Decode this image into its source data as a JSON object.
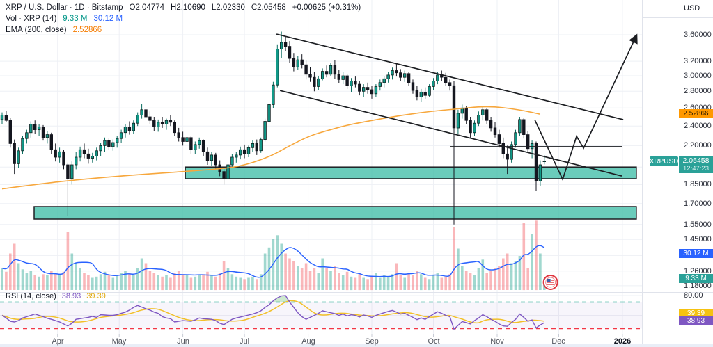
{
  "header": {
    "title": "XRP / U.S. Dollar · 1D · Bitstamp",
    "o": "O2.04774",
    "h": "H2.10690",
    "l": "L2.02330",
    "c": "C2.05458",
    "change": "+0.00625 (+0.31%)"
  },
  "legend": {
    "vol_title": "Vol · XRP (14)",
    "vol_value": "9.33 M",
    "vol_ma": "30.12 M",
    "ema_title": "EMA (200, close)",
    "ema_value": "2.52866"
  },
  "rsi_legend": {
    "title": "RSI (14, close)",
    "value": "38.93",
    "ma": "39.39"
  },
  "price_axis": {
    "currency": "USD",
    "ema_label": "2.52866",
    "symbol_badge": "XRPUSD",
    "last_price": "2.05458",
    "countdown": "12:47:23",
    "vol_ma_label": "30.12 M",
    "vol_label": "9.33 M",
    "rsi_ma_label": "39.39",
    "rsi_label": "38.93",
    "rsi_tick": "80.00"
  },
  "colors": {
    "up": "#119988",
    "up_border": "#10201e",
    "up_wick": "#0b6d60",
    "down": "#14161f",
    "down_border": "#14161f",
    "ema": "#f7a73c",
    "price_line": "#26a69a",
    "vol_up": "rgba(8,153,129,0.38)",
    "vol_down": "rgba(242,84,91,0.42)",
    "vol_ma": "#2962ff",
    "rsi": "#7e57c2",
    "rsi_ma": "#f2c029",
    "overbought": "#22ab94",
    "oversold": "#f23645",
    "zone_fill": "rgba(69,191,170,0.8)",
    "zone_border": "#1d1f23",
    "drawing": "#1c1e22",
    "grid": "#eef0f5",
    "badge_price": "#2aa198",
    "badge_ema": "#ff9800",
    "badge_volma": "#2962ff",
    "badge_vol": "#2aa198",
    "badge_rsi": "#7e57c2",
    "badge_rsima": "#f5c211"
  },
  "chart_data": {
    "type": "candlestick",
    "symbol": "XRPUSD",
    "exchange": "Bitstamp",
    "interval": "1D",
    "scale": "log",
    "bar_interval_days": 2,
    "price_ticks": [
      {
        "label": "3.60000",
        "p": 3.6
      },
      {
        "label": "3.20000",
        "p": 3.2
      },
      {
        "label": "3.00000",
        "p": 3.0
      },
      {
        "label": "2.80000",
        "p": 2.8
      },
      {
        "label": "2.60000",
        "p": 2.6
      },
      {
        "label": "2.40000",
        "p": 2.4
      },
      {
        "label": "2.20000",
        "p": 2.2
      },
      {
        "label": "1.85000",
        "p": 1.85
      },
      {
        "label": "1.70000",
        "p": 1.7
      },
      {
        "label": "1.55000",
        "p": 1.55
      },
      {
        "label": "1.45000",
        "p": 1.45
      },
      {
        "label": "1.35000",
        "p": 1.35
      },
      {
        "label": "1.26000",
        "p": 1.26
      },
      {
        "label": "1.18000",
        "p": 1.18
      }
    ],
    "grid_only_prices": [
      2.0
    ],
    "months": [
      {
        "label": "Apr",
        "day": 27
      },
      {
        "label": "May",
        "day": 57
      },
      {
        "label": "Jun",
        "day": 88
      },
      {
        "label": "Jul",
        "day": 118
      },
      {
        "label": "Aug",
        "day": 149
      },
      {
        "label": "Sep",
        "day": 180
      },
      {
        "label": "Oct",
        "day": 210
      },
      {
        "label": "Nov",
        "day": 241
      },
      {
        "label": "Dec",
        "day": 271
      },
      {
        "label": "2026",
        "day": 302,
        "year": true
      }
    ],
    "candles": [
      [
        2.47,
        2.55,
        2.42,
        2.52
      ],
      [
        2.52,
        2.57,
        2.44,
        2.46
      ],
      [
        2.46,
        2.49,
        2.18,
        2.22
      ],
      [
        2.22,
        2.26,
        1.94,
        2.03
      ],
      [
        2.03,
        2.18,
        1.99,
        2.15
      ],
      [
        2.15,
        2.3,
        2.12,
        2.27
      ],
      [
        2.27,
        2.36,
        2.22,
        2.33
      ],
      [
        2.33,
        2.45,
        2.28,
        2.42
      ],
      [
        2.42,
        2.46,
        2.32,
        2.36
      ],
      [
        2.36,
        2.42,
        2.3,
        2.39
      ],
      [
        2.39,
        2.41,
        2.25,
        2.28
      ],
      [
        2.28,
        2.35,
        2.22,
        2.31
      ],
      [
        2.31,
        2.33,
        2.12,
        2.16
      ],
      [
        2.16,
        2.22,
        2.05,
        2.09
      ],
      [
        2.09,
        2.18,
        2.04,
        2.14
      ],
      [
        2.14,
        2.16,
        1.98,
        2.02
      ],
      [
        2.02,
        2.04,
        1.61,
        1.9
      ],
      [
        1.9,
        2.05,
        1.85,
        2.02
      ],
      [
        2.02,
        2.14,
        1.98,
        2.09
      ],
      [
        2.09,
        2.19,
        2.05,
        2.16
      ],
      [
        2.16,
        2.22,
        2.08,
        2.12
      ],
      [
        2.12,
        2.17,
        2.03,
        2.08
      ],
      [
        2.08,
        2.13,
        2.04,
        2.1
      ],
      [
        2.1,
        2.18,
        2.06,
        2.15
      ],
      [
        2.15,
        2.23,
        2.1,
        2.2
      ],
      [
        2.2,
        2.28,
        2.14,
        2.25
      ],
      [
        2.25,
        2.27,
        2.16,
        2.19
      ],
      [
        2.19,
        2.26,
        2.15,
        2.23
      ],
      [
        2.23,
        2.3,
        2.18,
        2.27
      ],
      [
        2.27,
        2.36,
        2.23,
        2.33
      ],
      [
        2.33,
        2.42,
        2.28,
        2.39
      ],
      [
        2.39,
        2.45,
        2.31,
        2.35
      ],
      [
        2.35,
        2.46,
        2.32,
        2.43
      ],
      [
        2.43,
        2.55,
        2.4,
        2.52
      ],
      [
        2.52,
        2.65,
        2.48,
        2.58
      ],
      [
        2.58,
        2.62,
        2.46,
        2.5
      ],
      [
        2.5,
        2.56,
        2.42,
        2.46
      ],
      [
        2.46,
        2.5,
        2.35,
        2.39
      ],
      [
        2.39,
        2.47,
        2.34,
        2.44
      ],
      [
        2.44,
        2.5,
        2.38,
        2.42
      ],
      [
        2.42,
        2.48,
        2.36,
        2.46
      ],
      [
        2.46,
        2.52,
        2.4,
        2.44
      ],
      [
        2.44,
        2.46,
        2.3,
        2.33
      ],
      [
        2.33,
        2.38,
        2.24,
        2.28
      ],
      [
        2.28,
        2.34,
        2.2,
        2.24
      ],
      [
        2.24,
        2.31,
        2.18,
        2.28
      ],
      [
        2.28,
        2.3,
        2.12,
        2.16
      ],
      [
        2.16,
        2.24,
        2.12,
        2.21
      ],
      [
        2.21,
        2.28,
        2.17,
        2.25
      ],
      [
        2.25,
        2.26,
        2.1,
        2.14
      ],
      [
        2.14,
        2.18,
        2.02,
        2.06
      ],
      [
        2.06,
        2.14,
        2.01,
        2.11
      ],
      [
        2.11,
        2.13,
        1.98,
        2.02
      ],
      [
        2.02,
        2.06,
        1.92,
        1.96
      ],
      [
        1.96,
        2.0,
        1.85,
        1.9
      ],
      [
        1.9,
        2.05,
        1.88,
        2.02
      ],
      [
        2.02,
        2.12,
        1.99,
        2.09
      ],
      [
        2.09,
        2.14,
        2.04,
        2.11
      ],
      [
        2.11,
        2.19,
        2.07,
        2.16
      ],
      [
        2.16,
        2.21,
        2.08,
        2.12
      ],
      [
        2.12,
        2.2,
        2.09,
        2.18
      ],
      [
        2.18,
        2.25,
        2.14,
        2.22
      ],
      [
        2.22,
        2.26,
        2.11,
        2.15
      ],
      [
        2.15,
        2.28,
        2.13,
        2.26
      ],
      [
        2.26,
        2.48,
        2.24,
        2.45
      ],
      [
        2.45,
        2.68,
        2.43,
        2.64
      ],
      [
        2.64,
        2.92,
        2.6,
        2.88
      ],
      [
        2.88,
        3.45,
        2.85,
        3.38
      ],
      [
        3.38,
        3.65,
        3.25,
        3.48
      ],
      [
        3.48,
        3.58,
        3.35,
        3.42
      ],
      [
        3.42,
        3.5,
        3.18,
        3.24
      ],
      [
        3.24,
        3.32,
        3.06,
        3.12
      ],
      [
        3.12,
        3.28,
        3.08,
        3.22
      ],
      [
        3.22,
        3.3,
        3.1,
        3.15
      ],
      [
        3.15,
        3.21,
        2.95,
        3.02
      ],
      [
        3.02,
        3.12,
        2.92,
        2.98
      ],
      [
        2.98,
        3.05,
        2.8,
        2.86
      ],
      [
        2.86,
        3.0,
        2.82,
        2.96
      ],
      [
        2.96,
        3.1,
        2.94,
        3.06
      ],
      [
        3.06,
        3.14,
        2.98,
        3.02
      ],
      [
        3.02,
        3.18,
        3.0,
        3.14
      ],
      [
        3.14,
        3.22,
        2.96,
        3.02
      ],
      [
        3.02,
        3.08,
        2.9,
        2.95
      ],
      [
        2.95,
        3.05,
        2.89,
        3.0
      ],
      [
        3.0,
        3.02,
        2.83,
        2.87
      ],
      [
        2.87,
        2.97,
        2.79,
        2.93
      ],
      [
        2.93,
        2.99,
        2.85,
        2.89
      ],
      [
        2.89,
        2.93,
        2.75,
        2.8
      ],
      [
        2.8,
        2.89,
        2.73,
        2.85
      ],
      [
        2.85,
        2.91,
        2.77,
        2.82
      ],
      [
        2.82,
        2.87,
        2.71,
        2.77
      ],
      [
        2.77,
        2.89,
        2.73,
        2.86
      ],
      [
        2.86,
        2.95,
        2.81,
        2.91
      ],
      [
        2.91,
        2.99,
        2.85,
        2.96
      ],
      [
        2.96,
        3.05,
        2.91,
        3.01
      ],
      [
        3.01,
        3.11,
        2.95,
        3.07
      ],
      [
        3.07,
        3.17,
        2.99,
        3.04
      ],
      [
        3.04,
        3.09,
        2.93,
        2.98
      ],
      [
        2.98,
        3.07,
        2.92,
        3.03
      ],
      [
        3.03,
        3.05,
        2.87,
        2.91
      ],
      [
        2.91,
        2.95,
        2.77,
        2.81
      ],
      [
        2.81,
        2.87,
        2.69,
        2.73
      ],
      [
        2.73,
        2.83,
        2.67,
        2.79
      ],
      [
        2.79,
        2.85,
        2.71,
        2.75
      ],
      [
        2.75,
        2.89,
        2.73,
        2.86
      ],
      [
        2.86,
        2.97,
        2.82,
        2.93
      ],
      [
        2.93,
        3.05,
        2.89,
        3.01
      ],
      [
        3.01,
        3.07,
        2.93,
        2.98
      ],
      [
        2.98,
        3.04,
        2.87,
        2.91
      ],
      [
        2.91,
        2.95,
        2.81,
        2.87
      ],
      [
        2.87,
        2.93,
        1.55,
        2.38
      ],
      [
        2.38,
        2.58,
        2.32,
        2.54
      ],
      [
        2.54,
        2.64,
        2.48,
        2.6
      ],
      [
        2.6,
        2.62,
        2.42,
        2.46
      ],
      [
        2.46,
        2.5,
        2.28,
        2.33
      ],
      [
        2.33,
        2.46,
        2.3,
        2.43
      ],
      [
        2.43,
        2.56,
        2.4,
        2.52
      ],
      [
        2.52,
        2.62,
        2.46,
        2.58
      ],
      [
        2.58,
        2.6,
        2.42,
        2.46
      ],
      [
        2.46,
        2.5,
        2.34,
        2.38
      ],
      [
        2.38,
        2.44,
        2.28,
        2.31
      ],
      [
        2.31,
        2.36,
        2.18,
        2.22
      ],
      [
        2.22,
        2.28,
        2.08,
        2.12
      ],
      [
        2.12,
        2.2,
        1.94,
        2.07
      ],
      [
        2.07,
        2.24,
        2.04,
        2.21
      ],
      [
        2.21,
        2.36,
        2.18,
        2.33
      ],
      [
        2.33,
        2.5,
        2.3,
        2.47
      ],
      [
        2.47,
        2.49,
        2.27,
        2.31
      ],
      [
        2.31,
        2.35,
        2.13,
        2.17
      ],
      [
        2.17,
        2.25,
        2.08,
        2.22
      ],
      [
        2.22,
        2.24,
        1.8,
        1.88
      ],
      [
        1.88,
        2.06,
        1.84,
        2.02
      ],
      [
        2.04774,
        2.1069,
        2.0233,
        2.05458
      ]
    ],
    "volumes": [
      18,
      15,
      30,
      38,
      22,
      17,
      14,
      16,
      12,
      11,
      13,
      12,
      16,
      14,
      12,
      15,
      48,
      30,
      22,
      18,
      14,
      12,
      10,
      11,
      13,
      15,
      12,
      10,
      12,
      14,
      16,
      14,
      12,
      18,
      26,
      22,
      16,
      14,
      12,
      11,
      12,
      10,
      14,
      16,
      13,
      12,
      10,
      11,
      12,
      13,
      15,
      12,
      11,
      14,
      24,
      18,
      13,
      11,
      10,
      9,
      10,
      11,
      9,
      13,
      30,
      35,
      42,
      45,
      38,
      30,
      26,
      24,
      20,
      18,
      22,
      16,
      18,
      14,
      26,
      18,
      16,
      20,
      14,
      12,
      15,
      11,
      10,
      13,
      10,
      9,
      11,
      14,
      10,
      12,
      11,
      13,
      22,
      12,
      10,
      14,
      12,
      16,
      13,
      10,
      9,
      12,
      14,
      10,
      11,
      13,
      52,
      34,
      20,
      16,
      14,
      12,
      18,
      25,
      14,
      16,
      18,
      20,
      26,
      30,
      22,
      24,
      28,
      55,
      18,
      46,
      57,
      30,
      9.33
    ],
    "rsi_series": [
      50,
      46,
      41,
      40,
      42,
      46,
      48,
      50,
      52,
      50,
      48,
      45.5,
      44,
      42,
      40,
      37,
      34,
      38,
      44,
      45,
      46,
      47,
      48.5,
      47,
      51,
      50.5,
      50,
      50,
      51,
      53,
      55,
      58,
      62,
      65,
      62.5,
      60,
      58,
      55,
      53,
      48,
      46,
      45,
      40,
      41,
      42,
      41.5,
      41,
      43,
      46,
      45,
      44.5,
      44,
      42,
      38,
      36,
      40,
      44,
      46,
      47.5,
      49,
      50.5,
      52,
      54,
      57,
      62,
      66,
      72,
      76.5,
      79.5,
      80,
      70,
      62,
      54,
      48,
      44,
      47,
      50,
      53,
      57,
      55.5,
      54,
      52.5,
      50,
      52,
      49,
      51,
      50,
      47.5,
      50.5,
      49,
      47,
      50,
      52,
      54,
      56,
      57.5,
      55,
      52,
      53,
      50,
      47,
      43.5,
      46,
      44,
      48,
      52,
      55.5,
      53,
      50,
      48,
      29,
      35,
      40.5,
      39,
      37,
      42,
      46,
      51,
      48,
      44,
      41,
      37,
      34,
      33.5,
      39,
      44,
      52,
      47,
      41,
      43,
      31,
      35.5,
      38.93
    ],
    "rsi_levels": {
      "overbought": 70,
      "oversold": 30,
      "tick_80": 80,
      "mid_grid": 50
    },
    "ema_points": [
      [
        0,
        1.815
      ],
      [
        20,
        1.86
      ],
      [
        40,
        1.895
      ],
      [
        60,
        1.925
      ],
      [
        80,
        1.95
      ],
      [
        100,
        1.975
      ],
      [
        115,
        2.0
      ],
      [
        130,
        2.09
      ],
      [
        140,
        2.2
      ],
      [
        150,
        2.3
      ],
      [
        158,
        2.35
      ],
      [
        168,
        2.41
      ],
      [
        180,
        2.46
      ],
      [
        195,
        2.52
      ],
      [
        210,
        2.565
      ],
      [
        222,
        2.59
      ],
      [
        232,
        2.615
      ],
      [
        240,
        2.615
      ],
      [
        248,
        2.592
      ],
      [
        255,
        2.565
      ],
      [
        262,
        2.529
      ]
    ],
    "ema_last": 2.52866,
    "last_price": 2.05458,
    "drawings": {
      "upper_channel": {
        "d1": 133.6,
        "p1": 3.61,
        "d2": 302.4,
        "p2": 2.469
      },
      "lower_channel": {
        "d1": 135.3,
        "p1": 2.81,
        "d2": 301.7,
        "p2": 1.922
      },
      "resistance_line": {
        "d1": 218.3,
        "d2": 301.7,
        "p": 2.189
      },
      "support_zone_upper": {
        "d1": 89.2,
        "d2": 308.8,
        "p_top": 2.0,
        "p_bottom": 1.899
      },
      "support_zone_lower": {
        "d1": 15.6,
        "d2": 308.8,
        "p_top": 1.678,
        "p_bottom": 1.587
      },
      "projection_path": [
        [
          259.3,
          2.469
        ],
        [
          272.9,
          1.893
        ],
        [
          279.7,
          2.293
        ],
        [
          283.1,
          2.175
        ],
        [
          308.5,
          3.566
        ]
      ],
      "event_flag_day": 267
    }
  }
}
